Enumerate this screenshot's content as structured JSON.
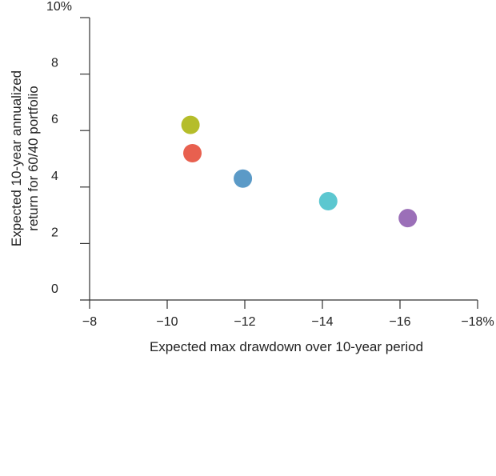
{
  "chart_data": {
    "type": "scatter",
    "title": "",
    "xlabel": "Expected max drawdown over 10-year period",
    "ylabel_lines": [
      "Expected 10-year annualized",
      "return for 60/40 portfolio"
    ],
    "xlim": [
      -8,
      -18
    ],
    "ylim": [
      0,
      10
    ],
    "x_ticks": [
      {
        "value": -8,
        "label": "−8"
      },
      {
        "value": -10,
        "label": "−10"
      },
      {
        "value": -12,
        "label": "−12"
      },
      {
        "value": -14,
        "label": "−14"
      },
      {
        "value": -16,
        "label": "−16"
      },
      {
        "value": -18,
        "label": "−18%"
      }
    ],
    "y_ticks": [
      {
        "value": 0,
        "label": "0"
      },
      {
        "value": 2,
        "label": "2"
      },
      {
        "value": 4,
        "label": "4"
      },
      {
        "value": 6,
        "label": "6"
      },
      {
        "value": 8,
        "label": "8"
      },
      {
        "value": 10,
        "label": "10%"
      }
    ],
    "grid": false,
    "points": [
      {
        "x": -10.6,
        "y": 6.2,
        "color": "#b5bd2a"
      },
      {
        "x": -10.65,
        "y": 5.2,
        "color": "#e8604f"
      },
      {
        "x": -11.95,
        "y": 4.3,
        "color": "#5b9ac7"
      },
      {
        "x": -14.15,
        "y": 3.5,
        "color": "#5cc7d0"
      },
      {
        "x": -16.2,
        "y": 2.9,
        "color": "#9b6fb8"
      }
    ]
  }
}
